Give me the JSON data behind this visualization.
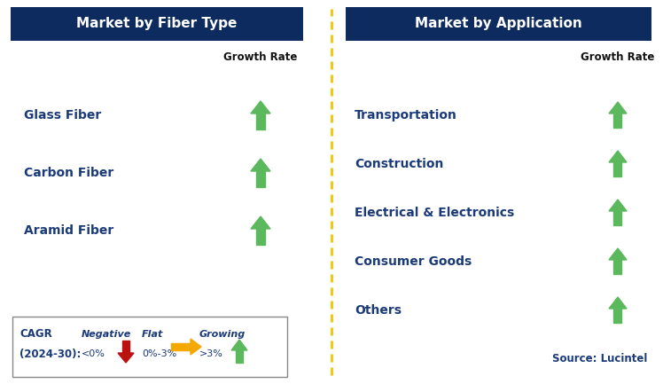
{
  "title_left": "Market by Fiber Type",
  "title_right": "Market by Application",
  "header_bg": "#0d2b5e",
  "header_text_color": "#ffffff",
  "left_items": [
    "Glass Fiber",
    "Carbon Fiber",
    "Aramid Fiber"
  ],
  "right_items": [
    "Transportation",
    "Construction",
    "Electrical & Electronics",
    "Consumer Goods",
    "Others"
  ],
  "item_text_color": "#1a3a7a",
  "growth_rate_label": "Growth Rate",
  "growth_rate_color": "#111111",
  "source_text": "Source: Lucintel",
  "bg_color": "#ffffff",
  "dashed_line_color": "#f5c518",
  "arrow_green": "#5cb85c",
  "arrow_red": "#bb1111",
  "arrow_yellow": "#f5a800",
  "legend_border_color": "#888888",
  "fig_width": 7.48,
  "fig_height": 4.33,
  "dpi": 100
}
